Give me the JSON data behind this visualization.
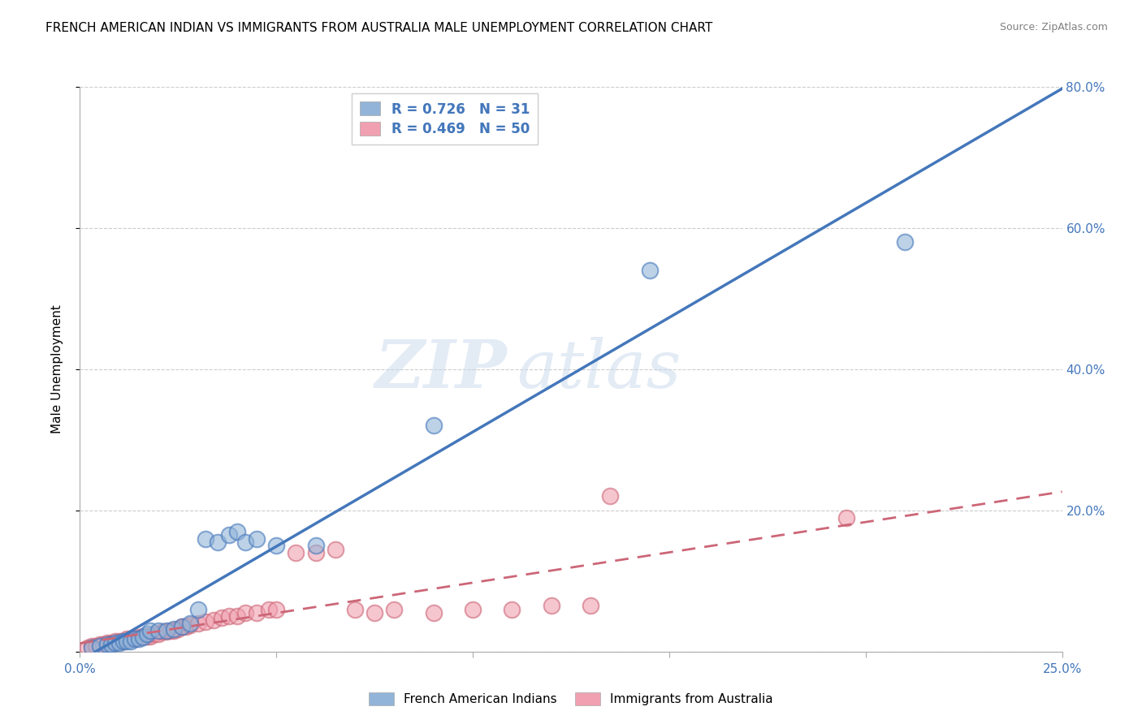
{
  "title": "FRENCH AMERICAN INDIAN VS IMMIGRANTS FROM AUSTRALIA MALE UNEMPLOYMENT CORRELATION CHART",
  "source": "Source: ZipAtlas.com",
  "ylabel": "Male Unemployment",
  "xlim": [
    0.0,
    0.25
  ],
  "ylim": [
    0.0,
    0.8
  ],
  "yticks": [
    0.0,
    0.2,
    0.4,
    0.6,
    0.8
  ],
  "yticklabels_right": [
    "",
    "20.0%",
    "40.0%",
    "60.0%",
    "80.0%"
  ],
  "xtick_left_label": "0.0%",
  "xtick_right_label": "25.0%",
  "blue_color": "#92B4D8",
  "blue_color_dark": "#4477BB",
  "pink_color": "#F0A0B0",
  "pink_color_dark": "#CC6677",
  "blue_r": "0.726",
  "blue_n": "31",
  "pink_r": "0.469",
  "pink_n": "50",
  "legend_label_blue": "French American Indians",
  "legend_label_pink": "Immigrants from Australia",
  "watermark_zip": "ZIP",
  "watermark_atlas": "atlas",
  "blue_scatter_x": [
    0.003,
    0.005,
    0.007,
    0.008,
    0.009,
    0.01,
    0.011,
    0.012,
    0.013,
    0.014,
    0.015,
    0.016,
    0.017,
    0.018,
    0.02,
    0.022,
    0.024,
    0.026,
    0.028,
    0.03,
    0.032,
    0.035,
    0.038,
    0.04,
    0.042,
    0.045,
    0.05,
    0.06,
    0.09,
    0.145,
    0.21
  ],
  "blue_scatter_y": [
    0.005,
    0.008,
    0.01,
    0.01,
    0.012,
    0.012,
    0.015,
    0.015,
    0.015,
    0.018,
    0.018,
    0.02,
    0.025,
    0.03,
    0.03,
    0.03,
    0.032,
    0.035,
    0.04,
    0.06,
    0.16,
    0.155,
    0.165,
    0.17,
    0.155,
    0.16,
    0.15,
    0.15,
    0.32,
    0.54,
    0.58
  ],
  "pink_scatter_x": [
    0.002,
    0.003,
    0.004,
    0.005,
    0.006,
    0.007,
    0.008,
    0.009,
    0.01,
    0.011,
    0.012,
    0.013,
    0.014,
    0.015,
    0.016,
    0.017,
    0.018,
    0.019,
    0.02,
    0.021,
    0.022,
    0.023,
    0.024,
    0.025,
    0.026,
    0.027,
    0.028,
    0.03,
    0.032,
    0.034,
    0.036,
    0.038,
    0.04,
    0.042,
    0.045,
    0.048,
    0.05,
    0.055,
    0.06,
    0.065,
    0.07,
    0.075,
    0.08,
    0.09,
    0.1,
    0.11,
    0.12,
    0.13,
    0.135,
    0.195
  ],
  "pink_scatter_y": [
    0.005,
    0.008,
    0.008,
    0.01,
    0.01,
    0.012,
    0.012,
    0.015,
    0.015,
    0.015,
    0.018,
    0.018,
    0.018,
    0.02,
    0.022,
    0.022,
    0.022,
    0.025,
    0.025,
    0.028,
    0.028,
    0.03,
    0.03,
    0.032,
    0.035,
    0.035,
    0.038,
    0.04,
    0.042,
    0.045,
    0.048,
    0.05,
    0.05,
    0.055,
    0.055,
    0.06,
    0.06,
    0.14,
    0.14,
    0.145,
    0.06,
    0.055,
    0.06,
    0.055,
    0.06,
    0.06,
    0.065,
    0.065,
    0.22,
    0.19
  ],
  "tick_color": "#4477BB",
  "grid_color": "#CCCCCC",
  "title_fontsize": 11,
  "source_fontsize": 9,
  "tick_fontsize": 11,
  "ylabel_fontsize": 11,
  "legend_fontsize": 12
}
